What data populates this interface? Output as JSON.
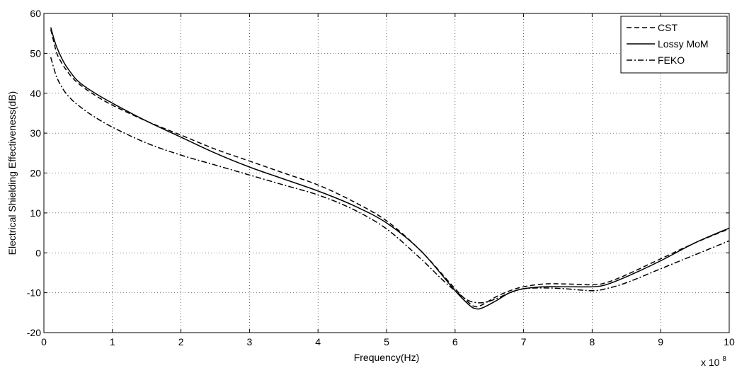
{
  "chart_data": {
    "type": "line",
    "xlabel": "Frequency(Hz)",
    "ylabel": "Electrical Shielding Effectiveness(dB)",
    "x_multiplier_label": "x 10",
    "x_multiplier_exp": "8",
    "xlim": [
      0,
      10
    ],
    "ylim": [
      -20,
      60
    ],
    "xticks": [
      "0",
      "1",
      "2",
      "3",
      "4",
      "5",
      "6",
      "7",
      "8",
      "9",
      "10"
    ],
    "yticks": [
      "-20",
      "-10",
      "0",
      "10",
      "20",
      "30",
      "40",
      "50",
      "60"
    ],
    "grid": true,
    "legend_position": "top-right",
    "series": [
      {
        "name": "CST",
        "style": "dashed",
        "color": "#000000",
        "x": [
          0.1,
          0.15,
          0.2,
          0.3,
          0.4,
          0.5,
          0.7,
          1.0,
          1.5,
          2.0,
          2.5,
          3.0,
          3.5,
          4.0,
          4.5,
          5.0,
          5.5,
          6.0,
          6.2,
          6.3,
          6.4,
          6.6,
          6.8,
          7.0,
          7.3,
          7.6,
          8.0,
          8.2,
          8.5,
          9.0,
          9.5,
          10.0
        ],
        "y": [
          56.0,
          52.5,
          49.5,
          46.5,
          44.2,
          42.5,
          40.0,
          37.0,
          33.0,
          29.5,
          26.0,
          23.0,
          20.0,
          17.0,
          13.0,
          8.0,
          0.5,
          -9.0,
          -12.5,
          -13.5,
          -13.0,
          -11.0,
          -9.5,
          -8.5,
          -7.8,
          -7.8,
          -8.0,
          -7.5,
          -5.5,
          -1.5,
          2.5,
          6.0
        ]
      },
      {
        "name": "Lossy MoM",
        "style": "solid",
        "color": "#000000",
        "x": [
          0.1,
          0.15,
          0.2,
          0.3,
          0.4,
          0.5,
          0.7,
          1.0,
          1.5,
          2.0,
          2.5,
          3.0,
          3.5,
          4.0,
          4.5,
          5.0,
          5.5,
          6.0,
          6.2,
          6.3,
          6.4,
          6.6,
          6.8,
          7.0,
          7.3,
          7.6,
          8.0,
          8.2,
          8.5,
          9.0,
          9.5,
          10.0
        ],
        "y": [
          56.5,
          53.5,
          51.0,
          47.5,
          45.0,
          43.0,
          40.5,
          37.5,
          33.0,
          29.0,
          25.0,
          21.5,
          18.5,
          15.5,
          12.0,
          7.5,
          0.5,
          -9.5,
          -13.0,
          -14.0,
          -13.8,
          -12.0,
          -10.0,
          -9.0,
          -8.5,
          -8.5,
          -8.5,
          -8.0,
          -6.0,
          -2.0,
          2.5,
          6.2
        ]
      },
      {
        "name": "FEKO",
        "style": "dashdot",
        "color": "#000000",
        "x": [
          0.1,
          0.15,
          0.2,
          0.3,
          0.4,
          0.5,
          0.7,
          1.0,
          1.5,
          2.0,
          2.5,
          3.0,
          3.5,
          4.0,
          4.5,
          5.0,
          5.5,
          5.8,
          6.0,
          6.2,
          6.4,
          6.6,
          6.8,
          7.0,
          7.3,
          7.6,
          8.0,
          8.2,
          8.5,
          9.0,
          9.5,
          10.0
        ],
        "y": [
          49.0,
          46.0,
          43.5,
          40.5,
          38.5,
          37.0,
          34.5,
          31.5,
          27.5,
          24.5,
          22.0,
          19.5,
          17.0,
          14.5,
          11.0,
          6.0,
          -1.5,
          -6.5,
          -9.5,
          -12.0,
          -12.5,
          -11.5,
          -10.0,
          -9.0,
          -8.8,
          -9.0,
          -9.5,
          -9.0,
          -7.5,
          -4.0,
          -0.5,
          3.0
        ]
      }
    ]
  }
}
